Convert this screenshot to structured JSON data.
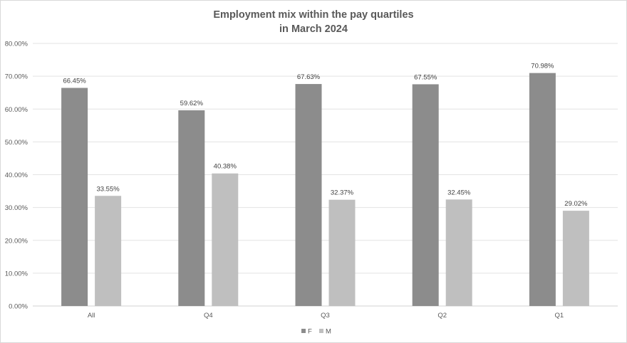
{
  "chart_data": {
    "type": "bar",
    "title_line1": "Employment mix within the pay quartiles",
    "title_line2": "in March 2024",
    "categories": [
      "All",
      "Q4",
      "Q3",
      "Q2",
      "Q1"
    ],
    "series": [
      {
        "name": "F",
        "color": "#8c8c8c",
        "values": [
          66.45,
          59.62,
          67.63,
          67.55,
          70.98
        ],
        "labels": [
          "66.45%",
          "59.62%",
          "67.63%",
          "67.55%",
          "70.98%"
        ]
      },
      {
        "name": "M",
        "color": "#bfbfbf",
        "values": [
          33.55,
          40.38,
          32.37,
          32.45,
          29.02
        ],
        "labels": [
          "33.55%",
          "40.38%",
          "32.37%",
          "32.45%",
          "29.02%"
        ]
      }
    ],
    "ylim": [
      0,
      80
    ],
    "yticks": [
      "0.00%",
      "10.00%",
      "20.00%",
      "30.00%",
      "40.00%",
      "50.00%",
      "60.00%",
      "70.00%",
      "80.00%"
    ],
    "grid": true,
    "legend_position": "bottom"
  }
}
